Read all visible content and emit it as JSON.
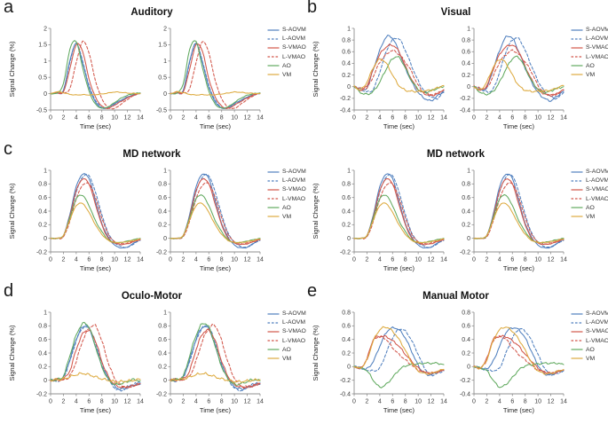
{
  "axes": {
    "x_label": "Time (sec)",
    "y_label": "Signal Change (%)",
    "xlim": [
      0,
      14
    ],
    "x_ticks": [
      0,
      2,
      4,
      6,
      8,
      10,
      12,
      14
    ],
    "x_points": [
      0,
      1,
      2,
      3,
      4,
      5,
      6,
      7,
      8,
      9,
      10,
      11,
      12,
      13,
      14
    ]
  },
  "legend": {
    "position": "right",
    "entries": [
      {
        "label": "S-AOVM",
        "color": "#4f7fbe",
        "dash": false
      },
      {
        "label": "L-AOVM",
        "color": "#4f7fbe",
        "dash": true
      },
      {
        "label": "S-VMAO",
        "color": "#d2564a",
        "dash": false
      },
      {
        "label": "L-VMAO",
        "color": "#d2564a",
        "dash": true
      },
      {
        "label": "AO",
        "color": "#61aa5f",
        "dash": false
      },
      {
        "label": "VM",
        "color": "#ddaa3f",
        "dash": false
      }
    ]
  },
  "chart_data": [
    {
      "type": "line",
      "slug": "a",
      "letter": "a",
      "title": "Auditory",
      "plots_per_panel": 2,
      "grid": false,
      "noise": 0.012,
      "ylim": [
        -0.5,
        2
      ],
      "yticks": [
        -0.5,
        0,
        0.5,
        1,
        1.5,
        2
      ],
      "series": [
        {
          "name": "S-AOVM",
          "values": [
            0,
            0.02,
            0.1,
            1.0,
            1.55,
            0.95,
            0.2,
            -0.25,
            -0.44,
            -0.42,
            -0.3,
            -0.2,
            -0.1,
            -0.03,
            0.02
          ]
        },
        {
          "name": "L-AOVM",
          "values": [
            0,
            0.02,
            0.08,
            0.95,
            1.55,
            1.0,
            0.25,
            -0.2,
            -0.42,
            -0.44,
            -0.33,
            -0.22,
            -0.12,
            -0.05,
            0
          ]
        },
        {
          "name": "S-VMAO",
          "values": [
            0,
            0.03,
            0.05,
            0.75,
            1.5,
            1.3,
            0.45,
            -0.1,
            -0.38,
            -0.45,
            -0.35,
            -0.24,
            -0.13,
            -0.04,
            0.02
          ]
        },
        {
          "name": "L-VMAO",
          "values": [
            0,
            0.05,
            0.02,
            0.15,
            0.95,
            1.6,
            1.25,
            0.4,
            -0.15,
            -0.42,
            -0.45,
            -0.32,
            -0.18,
            -0.06,
            0.02
          ]
        },
        {
          "name": "AO",
          "values": [
            0,
            0.02,
            0.3,
            1.35,
            1.6,
            0.8,
            0.08,
            -0.32,
            -0.44,
            -0.4,
            -0.27,
            -0.14,
            -0.05,
            0,
            0.02
          ]
        },
        {
          "name": "VM",
          "values": [
            0,
            0.06,
            0.03,
            -0.02,
            -0.04,
            -0.03,
            -0.04,
            -0.03,
            -0.01,
            0.02,
            0.05,
            0.04,
            0.02,
            0.01,
            0
          ]
        }
      ]
    },
    {
      "type": "line",
      "slug": "b",
      "letter": "b",
      "title": "Visual",
      "plots_per_panel": 2,
      "grid": false,
      "noise": 0.02,
      "ylim": [
        -0.4,
        1
      ],
      "yticks": [
        -0.4,
        -0.2,
        0,
        0.2,
        0.4,
        0.6,
        0.8,
        1
      ],
      "series": [
        {
          "name": "S-AOVM",
          "values": [
            0,
            -0.05,
            -0.02,
            0.3,
            0.62,
            0.85,
            0.83,
            0.6,
            0.32,
            0.08,
            -0.1,
            -0.2,
            -0.24,
            -0.16,
            -0.08
          ]
        },
        {
          "name": "L-AOVM",
          "values": [
            0,
            -0.04,
            -0.09,
            -0.04,
            0.25,
            0.6,
            0.8,
            0.82,
            0.62,
            0.35,
            0.1,
            -0.08,
            -0.17,
            -0.2,
            -0.1
          ]
        },
        {
          "name": "S-VMAO",
          "values": [
            0,
            -0.06,
            0.02,
            0.3,
            0.55,
            0.68,
            0.71,
            0.6,
            0.35,
            0.12,
            -0.05,
            -0.12,
            -0.15,
            -0.12,
            -0.05
          ]
        },
        {
          "name": "L-VMAO",
          "values": [
            0,
            -0.03,
            -0.02,
            0.18,
            0.42,
            0.55,
            0.62,
            0.55,
            0.42,
            0.25,
            0.02,
            -0.1,
            -0.14,
            -0.12,
            -0.06
          ]
        },
        {
          "name": "AO",
          "values": [
            0,
            -0.1,
            -0.13,
            -0.08,
            0.08,
            0.3,
            0.48,
            0.5,
            0.32,
            0.1,
            -0.04,
            -0.1,
            -0.07,
            -0.03,
            0
          ]
        },
        {
          "name": "VM",
          "values": [
            0,
            -0.05,
            0.08,
            0.33,
            0.47,
            0.4,
            0.2,
            0.02,
            -0.06,
            -0.08,
            -0.08,
            -0.07,
            -0.06,
            -0.02,
            0.02
          ]
        }
      ]
    },
    {
      "type": "line",
      "slug": "c-left",
      "letter": "c",
      "title": "MD network",
      "plots_per_panel": 2,
      "grid": false,
      "noise": 0.006,
      "ylim": [
        -0.2,
        1
      ],
      "yticks": [
        -0.2,
        0,
        0.2,
        0.4,
        0.6,
        0.8,
        1
      ],
      "series": [
        {
          "name": "S-AOVM",
          "values": [
            0,
            0,
            0.04,
            0.35,
            0.76,
            0.94,
            0.88,
            0.55,
            0.22,
            0.02,
            -0.1,
            -0.14,
            -0.13,
            -0.07,
            -0.02
          ]
        },
        {
          "name": "L-AOVM",
          "values": [
            0,
            0,
            0.03,
            0.3,
            0.68,
            0.9,
            0.92,
            0.68,
            0.35,
            0.08,
            -0.06,
            -0.12,
            -0.13,
            -0.08,
            -0.03
          ]
        },
        {
          "name": "S-VMAO",
          "values": [
            0,
            0,
            0.04,
            0.32,
            0.7,
            0.87,
            0.8,
            0.5,
            0.2,
            0,
            -0.07,
            -0.09,
            -0.08,
            -0.05,
            -0.02
          ]
        },
        {
          "name": "L-VMAO",
          "values": [
            0,
            0,
            0.02,
            0.25,
            0.58,
            0.78,
            0.8,
            0.6,
            0.3,
            0.06,
            -0.05,
            -0.08,
            -0.07,
            -0.04,
            -0.01
          ]
        },
        {
          "name": "AO",
          "values": [
            0,
            0,
            0.04,
            0.3,
            0.58,
            0.63,
            0.48,
            0.26,
            0.1,
            -0.02,
            -0.06,
            -0.06,
            -0.04,
            -0.02,
            0
          ]
        },
        {
          "name": "VM",
          "values": [
            0,
            0,
            0.04,
            0.27,
            0.48,
            0.51,
            0.38,
            0.2,
            0.06,
            -0.03,
            -0.06,
            -0.06,
            -0.05,
            -0.03,
            -0.01
          ]
        }
      ]
    },
    {
      "type": "line",
      "slug": "c-right",
      "letter": "",
      "title": "MD network",
      "plots_per_panel": 2,
      "grid": false,
      "noise": 0.006,
      "ylim": [
        -0.2,
        1
      ],
      "yticks": [
        -0.2,
        0,
        0.2,
        0.4,
        0.6,
        0.8,
        1
      ],
      "series": [
        {
          "name": "S-AOVM",
          "values": [
            0,
            0,
            0.04,
            0.35,
            0.76,
            0.94,
            0.88,
            0.55,
            0.22,
            0.02,
            -0.1,
            -0.14,
            -0.13,
            -0.07,
            -0.02
          ]
        },
        {
          "name": "L-AOVM",
          "values": [
            0,
            0,
            0.03,
            0.3,
            0.68,
            0.9,
            0.92,
            0.68,
            0.35,
            0.08,
            -0.06,
            -0.12,
            -0.13,
            -0.08,
            -0.03
          ]
        },
        {
          "name": "S-VMAO",
          "values": [
            0,
            0,
            0.04,
            0.32,
            0.7,
            0.87,
            0.8,
            0.5,
            0.2,
            0,
            -0.07,
            -0.09,
            -0.08,
            -0.05,
            -0.02
          ]
        },
        {
          "name": "L-VMAO",
          "values": [
            0,
            0,
            0.02,
            0.25,
            0.58,
            0.78,
            0.8,
            0.6,
            0.3,
            0.06,
            -0.05,
            -0.08,
            -0.07,
            -0.04,
            -0.01
          ]
        },
        {
          "name": "AO",
          "values": [
            0,
            0,
            0.04,
            0.3,
            0.58,
            0.63,
            0.48,
            0.26,
            0.1,
            -0.02,
            -0.06,
            -0.06,
            -0.04,
            -0.02,
            0
          ]
        },
        {
          "name": "VM",
          "values": [
            0,
            0,
            0.04,
            0.27,
            0.48,
            0.51,
            0.38,
            0.2,
            0.06,
            -0.03,
            -0.06,
            -0.06,
            -0.05,
            -0.03,
            -0.01
          ]
        }
      ]
    },
    {
      "type": "line",
      "slug": "d",
      "letter": "d",
      "title": "Oculo-Motor",
      "plots_per_panel": 2,
      "grid": false,
      "noise": 0.022,
      "ylim": [
        -0.2,
        1
      ],
      "yticks": [
        -0.2,
        0,
        0.2,
        0.4,
        0.6,
        0.8,
        1
      ],
      "series": [
        {
          "name": "S-AOVM",
          "values": [
            0,
            0.01,
            0.05,
            0.3,
            0.6,
            0.78,
            0.76,
            0.5,
            0.22,
            0.03,
            -0.09,
            -0.13,
            -0.11,
            -0.07,
            -0.04
          ]
        },
        {
          "name": "L-AOVM",
          "values": [
            0,
            -0.01,
            0.04,
            0.28,
            0.58,
            0.77,
            0.77,
            0.55,
            0.25,
            0.02,
            -0.11,
            -0.15,
            -0.1,
            -0.06,
            -0.06
          ]
        },
        {
          "name": "S-VMAO",
          "values": [
            0,
            0.01,
            0.02,
            0.14,
            0.45,
            0.68,
            0.73,
            0.58,
            0.28,
            0.06,
            -0.06,
            -0.1,
            -0.1,
            -0.08,
            -0.05
          ]
        },
        {
          "name": "L-VMAO",
          "values": [
            0,
            0,
            0.01,
            0.06,
            0.28,
            0.58,
            0.76,
            0.8,
            0.58,
            0.26,
            0.03,
            -0.08,
            -0.1,
            -0.08,
            -0.05
          ]
        },
        {
          "name": "AO",
          "values": [
            0,
            0.01,
            0.06,
            0.36,
            0.66,
            0.83,
            0.78,
            0.5,
            0.2,
            0.02,
            -0.06,
            -0.05,
            -0.02,
            0.01,
            -0.01
          ]
        },
        {
          "name": "VM",
          "values": [
            0,
            0.01,
            0.02,
            0.05,
            0.08,
            0.1,
            0.08,
            0.05,
            0.02,
            0,
            -0.02,
            -0.02,
            -0.01,
            0,
            0.01
          ]
        }
      ]
    },
    {
      "type": "line",
      "slug": "e",
      "letter": "e",
      "title": "Manual Motor",
      "plots_per_panel": 2,
      "grid": false,
      "noise": 0.016,
      "ylim": [
        -0.4,
        0.8
      ],
      "yticks": [
        -0.4,
        -0.2,
        0,
        0.2,
        0.4,
        0.6,
        0.8
      ],
      "series": [
        {
          "name": "S-AOVM",
          "values": [
            0,
            -0.02,
            -0.03,
            0.08,
            0.3,
            0.5,
            0.57,
            0.54,
            0.42,
            0.22,
            0.02,
            -0.1,
            -0.12,
            -0.08,
            -0.06
          ]
        },
        {
          "name": "L-AOVM",
          "values": [
            0,
            -0.03,
            -0.05,
            -0.06,
            -0.02,
            0.2,
            0.42,
            0.55,
            0.52,
            0.38,
            0.18,
            -0.02,
            -0.12,
            -0.1,
            -0.06
          ]
        },
        {
          "name": "S-VMAO",
          "values": [
            0,
            -0.02,
            0.12,
            0.4,
            0.44,
            0.44,
            0.38,
            0.3,
            0.18,
            0.08,
            -0.02,
            -0.08,
            -0.1,
            -0.08,
            -0.05
          ]
        },
        {
          "name": "L-VMAO",
          "values": [
            0,
            -0.02,
            0.1,
            0.38,
            0.44,
            0.4,
            0.28,
            0.18,
            0.1,
            0.02,
            -0.05,
            -0.08,
            -0.09,
            -0.07,
            -0.05
          ]
        },
        {
          "name": "AO",
          "values": [
            0,
            -0.02,
            -0.06,
            -0.2,
            -0.3,
            -0.26,
            -0.16,
            -0.05,
            0.01,
            0.03,
            0.04,
            0.05,
            0.05,
            0.05,
            0.03
          ]
        },
        {
          "name": "VM",
          "values": [
            0,
            -0.02,
            0.1,
            0.38,
            0.54,
            0.58,
            0.52,
            0.4,
            0.24,
            0.06,
            -0.06,
            -0.1,
            -0.1,
            -0.07,
            -0.04
          ]
        }
      ]
    }
  ]
}
